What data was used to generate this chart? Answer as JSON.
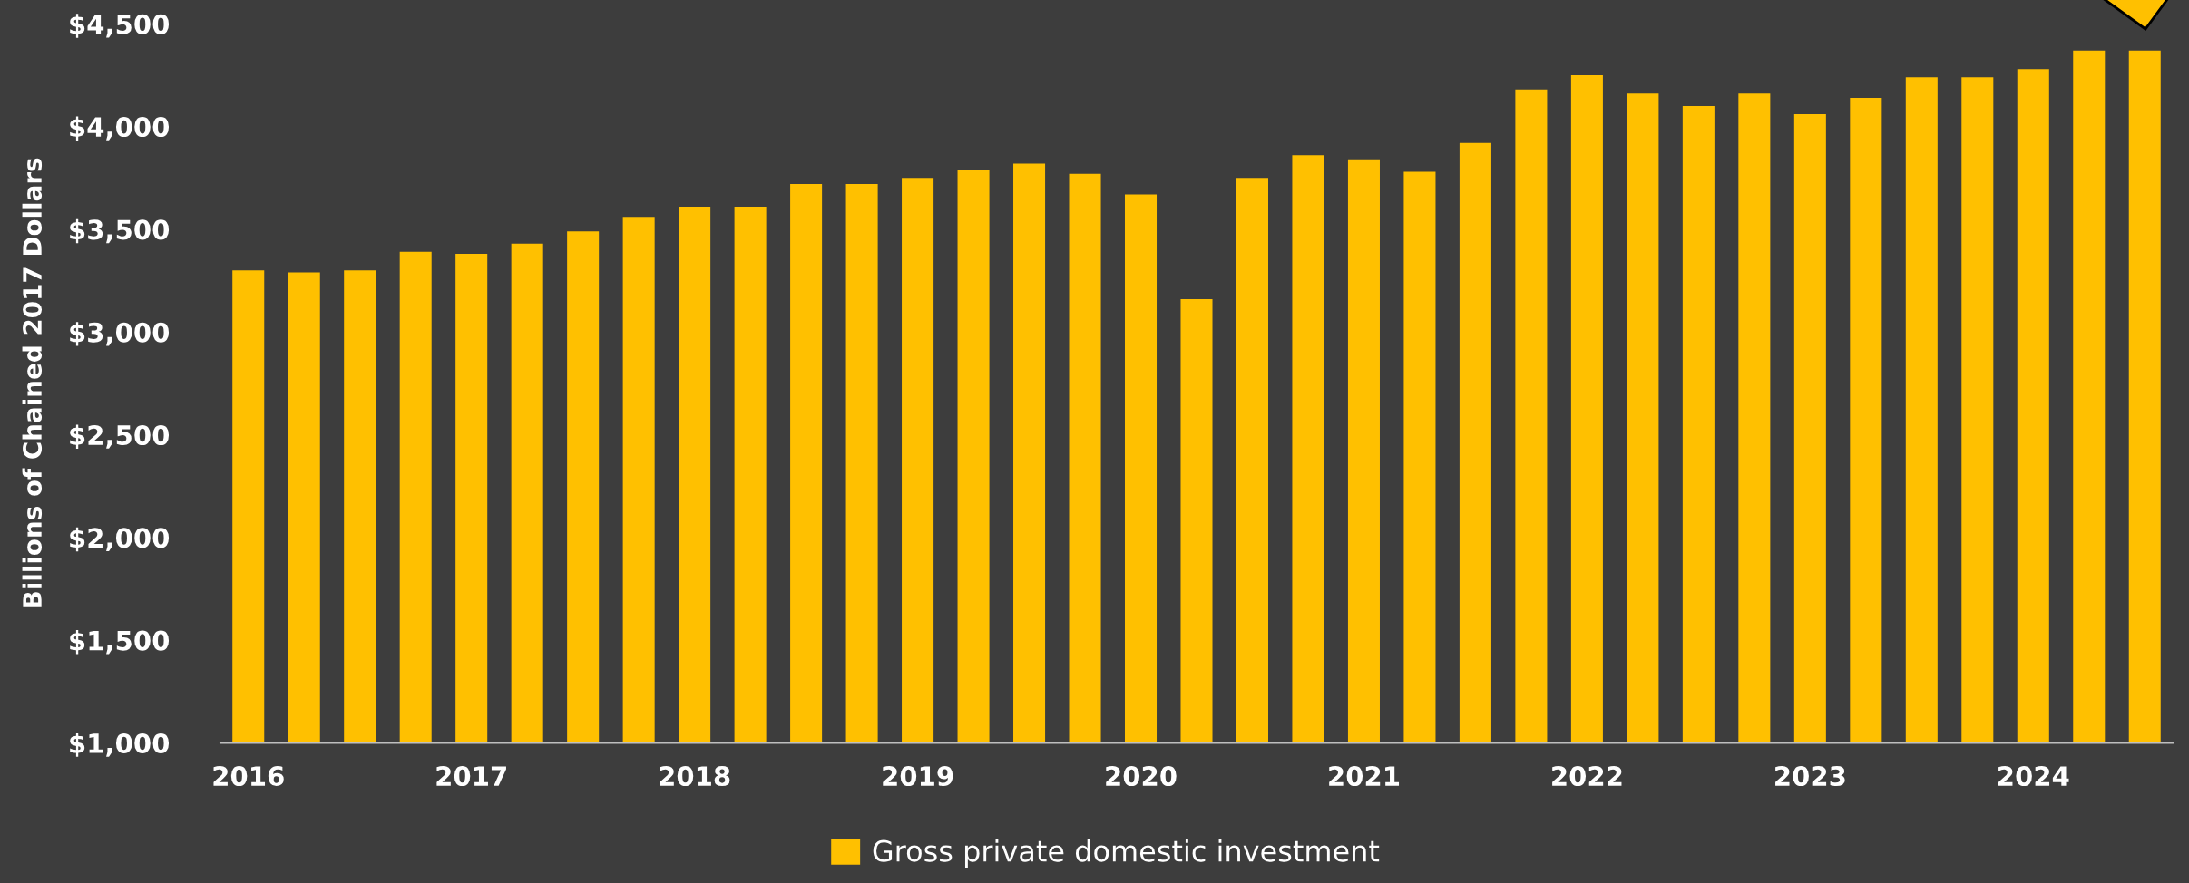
{
  "chart_data": {
    "type": "bar",
    "ylabel": "Billions of Chained 2017 Dollars",
    "categories": [
      "2016",
      null,
      null,
      null,
      "2017",
      null,
      null,
      null,
      "2018",
      null,
      null,
      null,
      "2019",
      null,
      null,
      null,
      "2020",
      null,
      null,
      null,
      "2021",
      null,
      null,
      null,
      "2022",
      null,
      null,
      null,
      "2023",
      null,
      null,
      null,
      "2024",
      null,
      null
    ],
    "series": [
      {
        "name": "Gross private domestic investment",
        "color": "#ffc000",
        "values": [
          3300,
          3290,
          3300,
          3390,
          3380,
          3430,
          3490,
          3560,
          3610,
          3610,
          3720,
          3720,
          3750,
          3790,
          3820,
          3770,
          3670,
          3160,
          3750,
          3860,
          3840,
          3780,
          3920,
          4180,
          4250,
          4160,
          4100,
          4160,
          4060,
          4140,
          4240,
          4240,
          4280,
          4370,
          4370
        ]
      }
    ],
    "ylim": [
      1000,
      4500
    ],
    "yticks": [
      {
        "value": 1000,
        "label": "$1,000"
      },
      {
        "value": 1500,
        "label": "$1,500"
      },
      {
        "value": 2000,
        "label": "$2,000"
      },
      {
        "value": 2500,
        "label": "$2,500"
      },
      {
        "value": 3000,
        "label": "$3,000"
      },
      {
        "value": 3500,
        "label": "$3,500"
      },
      {
        "value": 4000,
        "label": "$4,000"
      },
      {
        "value": 4500,
        "label": "$4,500"
      }
    ],
    "grid": false,
    "legend": "bottom"
  }
}
